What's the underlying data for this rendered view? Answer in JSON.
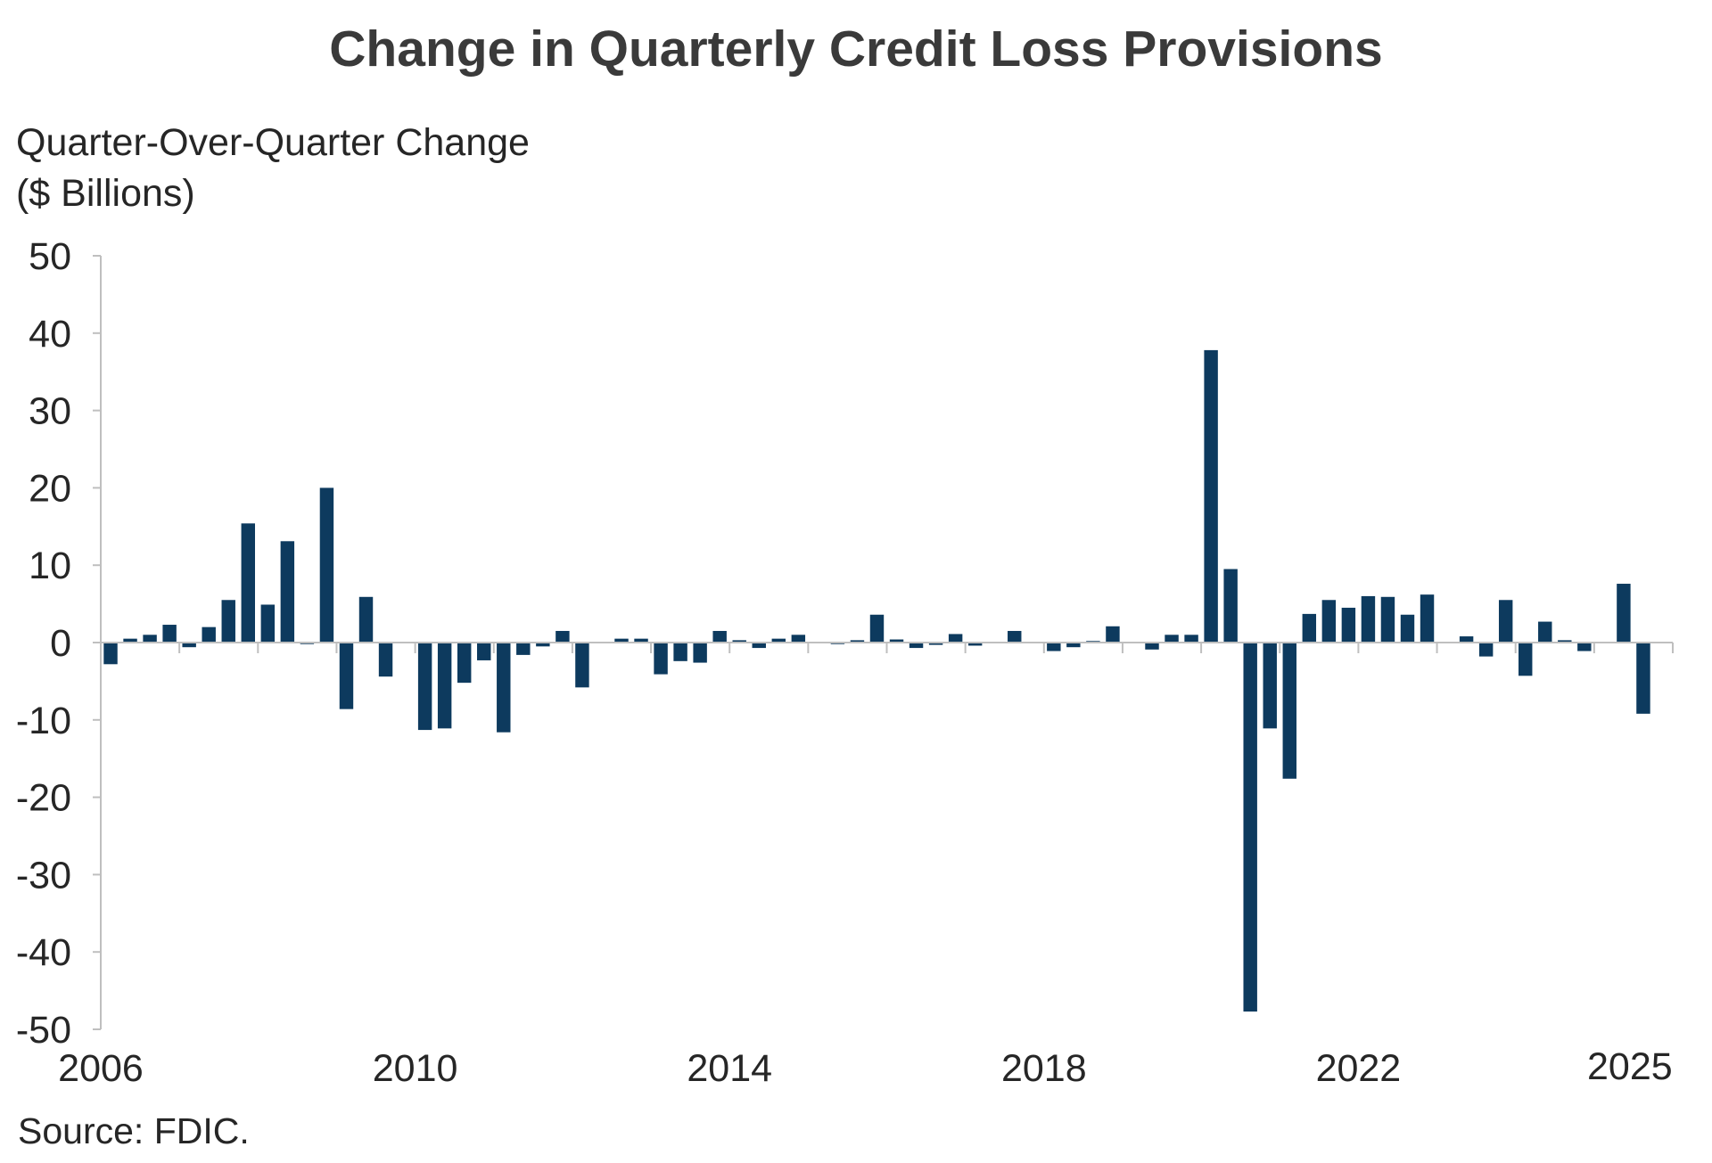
{
  "chart_data": {
    "type": "bar",
    "title": "Change in Quarterly Credit Loss Provisions",
    "ylabel_lines": [
      "Quarter-Over-Quarter Change",
      "($ Billions)"
    ],
    "source": "Source: FDIC.",
    "ylim": [
      -50,
      50
    ],
    "yticks": [
      50,
      40,
      30,
      20,
      10,
      0,
      -10,
      -20,
      -30,
      -40,
      -50
    ],
    "x_tick_labels": [
      "2006",
      "2010",
      "2014",
      "2018",
      "2022",
      "2025"
    ],
    "x_tick_positions": [
      "2006Q1",
      "2010Q1",
      "2014Q1",
      "2018Q1",
      "2022Q1",
      "2025Q1"
    ],
    "bar_color": "#0d3a5e",
    "grid": false,
    "categories": [
      "2006Q1",
      "2006Q2",
      "2006Q3",
      "2006Q4",
      "2007Q1",
      "2007Q2",
      "2007Q3",
      "2007Q4",
      "2008Q1",
      "2008Q2",
      "2008Q3",
      "2008Q4",
      "2009Q1",
      "2009Q2",
      "2009Q3",
      "2009Q4",
      "2010Q1",
      "2010Q2",
      "2010Q3",
      "2010Q4",
      "2011Q1",
      "2011Q2",
      "2011Q3",
      "2011Q4",
      "2012Q1",
      "2012Q2",
      "2012Q3",
      "2012Q4",
      "2013Q1",
      "2013Q2",
      "2013Q3",
      "2013Q4",
      "2014Q1",
      "2014Q2",
      "2014Q3",
      "2014Q4",
      "2015Q1",
      "2015Q2",
      "2015Q3",
      "2015Q4",
      "2016Q1",
      "2016Q2",
      "2016Q3",
      "2016Q4",
      "2017Q1",
      "2017Q2",
      "2017Q3",
      "2017Q4",
      "2018Q1",
      "2018Q2",
      "2018Q3",
      "2018Q4",
      "2019Q1",
      "2019Q2",
      "2019Q3",
      "2019Q4",
      "2020Q1",
      "2020Q2",
      "2020Q3",
      "2020Q4",
      "2021Q1",
      "2021Q2",
      "2021Q3",
      "2021Q4",
      "2022Q1",
      "2022Q2",
      "2022Q3",
      "2022Q4",
      "2023Q1",
      "2023Q2",
      "2023Q3",
      "2023Q4",
      "2024Q1",
      "2024Q2",
      "2024Q3",
      "2024Q4",
      "2025Q1",
      "2025Q2",
      "2025Q3",
      "2025Q4"
    ],
    "values": [
      -2.8,
      0.5,
      1.0,
      2.3,
      -0.6,
      2.0,
      5.5,
      15.4,
      4.9,
      13.1,
      -0.2,
      20.0,
      -8.6,
      5.9,
      -4.4,
      0.1,
      -11.3,
      -11.1,
      -5.2,
      -2.3,
      -11.6,
      -1.6,
      -0.5,
      1.5,
      -5.8,
      -0.1,
      0.5,
      0.5,
      -4.1,
      -2.4,
      -2.6,
      1.5,
      0.3,
      -0.7,
      0.5,
      1.0,
      -0.1,
      -0.2,
      0.3,
      3.6,
      0.4,
      -0.7,
      -0.3,
      1.1,
      -0.4,
      -0.1,
      1.5,
      0.1,
      -1.1,
      -0.6,
      0.2,
      2.1,
      -0.1,
      -0.9,
      1.0,
      1.0,
      37.8,
      9.5,
      -47.7,
      -11.1,
      -17.6,
      3.7,
      5.5,
      4.5,
      6.0,
      5.9,
      3.6,
      6.2,
      0.0,
      0.8,
      -1.8,
      5.5,
      -4.3,
      2.7,
      0.3,
      -1.1,
      0.0,
      7.6,
      -9.2,
      0.0
    ]
  }
}
